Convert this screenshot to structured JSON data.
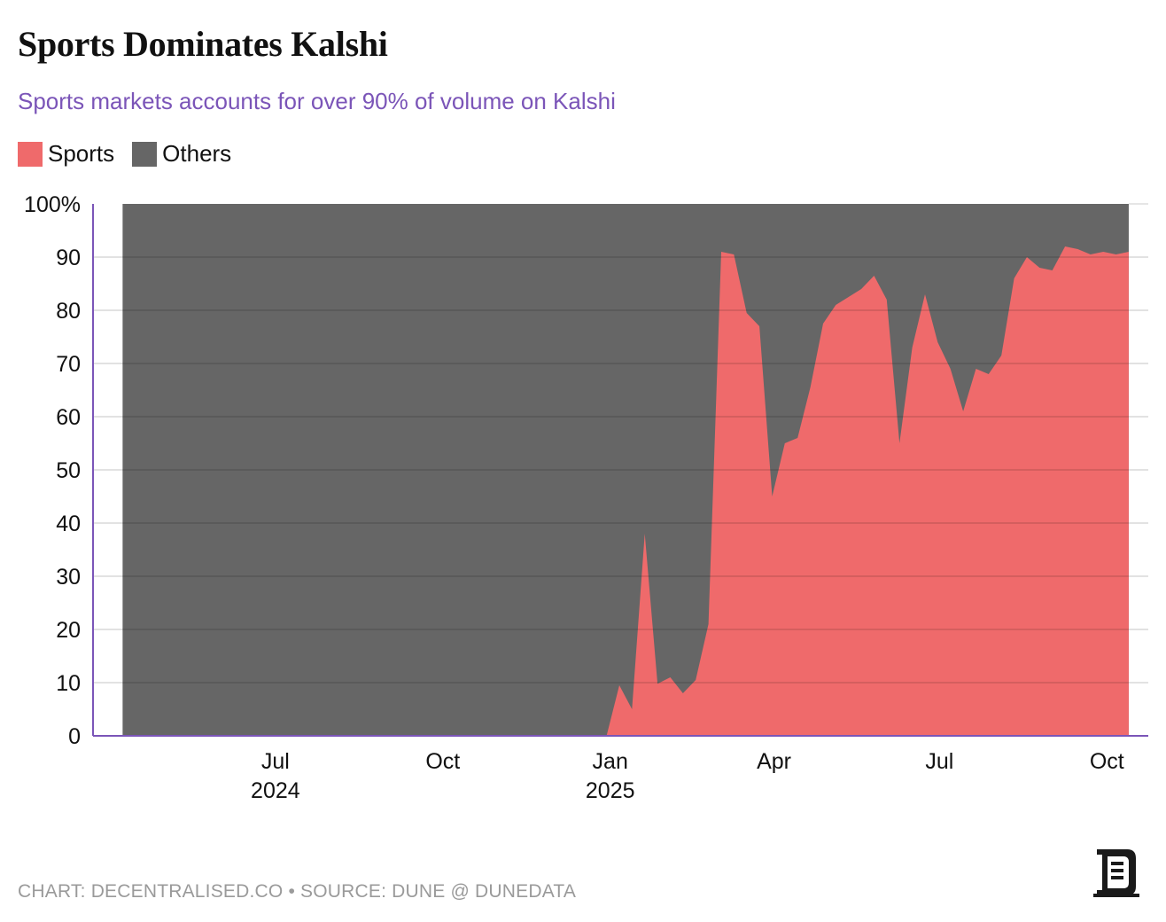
{
  "title": "Sports Dominates Kalshi",
  "subtitle": "Sports markets accounts for over 90% of volume on Kalshi",
  "footer": "CHART: DECENTRALISED.CO • SOURCE: DUNE @ DUNEDATA",
  "colors": {
    "sports": "#ef6a6b",
    "others": "#666666",
    "subtitle": "#7b55b8",
    "axis": "#7b55b8"
  },
  "legend": [
    {
      "name": "Sports",
      "color": "#ef6a6b"
    },
    {
      "name": "Others",
      "color": "#666666"
    }
  ],
  "chart_data": {
    "type": "area",
    "stacked": true,
    "percent": true,
    "ylim": [
      0,
      100
    ],
    "y_ticks": [
      {
        "value": 0,
        "label": "0"
      },
      {
        "value": 10,
        "label": "10"
      },
      {
        "value": 20,
        "label": "20"
      },
      {
        "value": 30,
        "label": "30"
      },
      {
        "value": 40,
        "label": "40"
      },
      {
        "value": 50,
        "label": "50"
      },
      {
        "value": 60,
        "label": "60"
      },
      {
        "value": 70,
        "label": "70"
      },
      {
        "value": 80,
        "label": "80"
      },
      {
        "value": 90,
        "label": "90"
      },
      {
        "value": 100,
        "label": "100%"
      }
    ],
    "x_ticks": [
      {
        "date": "2024-07-01",
        "label": "Jul",
        "sublabel": "2024"
      },
      {
        "date": "2024-10-01",
        "label": "Oct",
        "sublabel": ""
      },
      {
        "date": "2025-01-01",
        "label": "Jan",
        "sublabel": "2025"
      },
      {
        "date": "2025-04-01",
        "label": "Apr",
        "sublabel": ""
      },
      {
        "date": "2025-07-01",
        "label": "Jul",
        "sublabel": ""
      },
      {
        "date": "2025-10-01",
        "label": "Oct",
        "sublabel": ""
      }
    ],
    "xlim": [
      "2024-04-01",
      "2025-10-14"
    ],
    "grid": true,
    "legend_position": "top-left",
    "series": [
      {
        "name": "Sports",
        "color": "#ef6a6b",
        "x": [
          "2024-04-08",
          "2024-12-30",
          "2025-01-06",
          "2025-01-13",
          "2025-01-20",
          "2025-01-27",
          "2025-02-03",
          "2025-02-10",
          "2025-02-17",
          "2025-02-24",
          "2025-03-03",
          "2025-03-10",
          "2025-03-17",
          "2025-03-24",
          "2025-03-31",
          "2025-04-07",
          "2025-04-14",
          "2025-04-21",
          "2025-04-28",
          "2025-05-05",
          "2025-05-12",
          "2025-05-19",
          "2025-05-26",
          "2025-06-02",
          "2025-06-09",
          "2025-06-16",
          "2025-06-23",
          "2025-06-30",
          "2025-07-07",
          "2025-07-14",
          "2025-07-21",
          "2025-07-28",
          "2025-08-04",
          "2025-08-11",
          "2025-08-18",
          "2025-08-25",
          "2025-09-01",
          "2025-09-08",
          "2025-09-15",
          "2025-09-22",
          "2025-09-29",
          "2025-10-06",
          "2025-10-13"
        ],
        "values": [
          0,
          0,
          9.5,
          5,
          38,
          9.8,
          11,
          8,
          10.5,
          21,
          91,
          90.5,
          79.5,
          77,
          45,
          55,
          56,
          65.5,
          77.5,
          81,
          82.5,
          84,
          86.5,
          82,
          55,
          73,
          83,
          74,
          69,
          61,
          69,
          68,
          71.5,
          86,
          90,
          88,
          87.5,
          92,
          91.5,
          90.5,
          91,
          90.5,
          91
        ]
      },
      {
        "name": "Others",
        "color": "#666666",
        "note": "complement",
        "values_rule": "100 - Sports"
      }
    ]
  }
}
